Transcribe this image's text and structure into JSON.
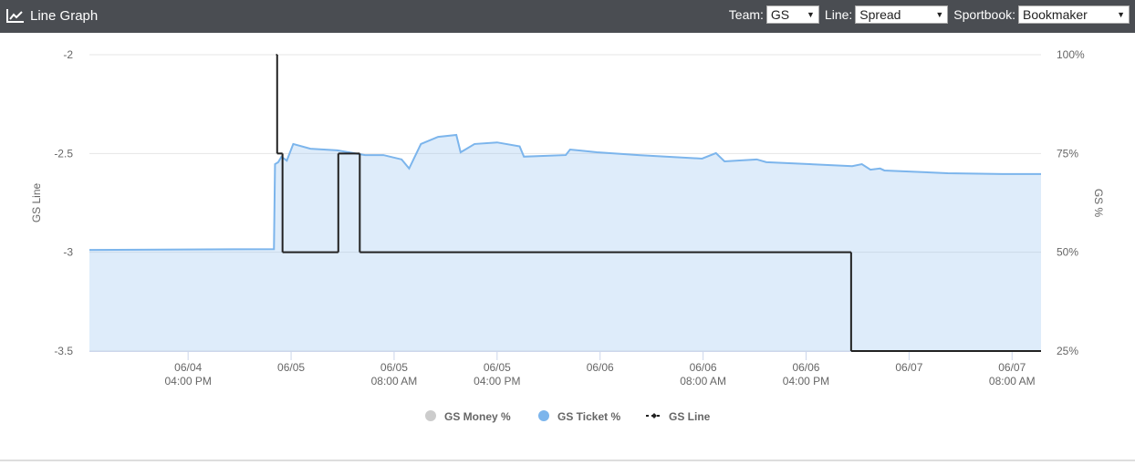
{
  "header": {
    "title": "Line Graph",
    "controls": [
      {
        "label": "Team:",
        "value": "GS"
      },
      {
        "label": "Line:",
        "value": "Spread"
      },
      {
        "label": "Sportbook:",
        "value": "Bookmaker"
      }
    ]
  },
  "chart_data": {
    "type": "line",
    "y_label": "GS Line",
    "y2_label": "GS %",
    "xlim": [
      "06/04 08:20",
      "06/07 10:15"
    ],
    "xticks": [
      {
        "value": "06/04 16:00",
        "label": [
          "06/04",
          "04:00 PM"
        ]
      },
      {
        "value": "06/05 00:00",
        "label": [
          "06/05"
        ]
      },
      {
        "value": "06/05 08:00",
        "label": [
          "06/05",
          "08:00 AM"
        ]
      },
      {
        "value": "06/05 16:00",
        "label": [
          "06/05",
          "04:00 PM"
        ]
      },
      {
        "value": "06/06 00:00",
        "label": [
          "06/06"
        ]
      },
      {
        "value": "06/06 08:00",
        "label": [
          "06/06",
          "08:00 AM"
        ]
      },
      {
        "value": "06/06 16:00",
        "label": [
          "06/06",
          "04:00 PM"
        ]
      },
      {
        "value": "06/07 00:00",
        "label": [
          "06/07"
        ]
      },
      {
        "value": "06/07 08:00",
        "label": [
          "06/07",
          "08:00 AM"
        ]
      }
    ],
    "ylim": [
      -3.5,
      -2
    ],
    "yticks": [
      -2,
      -2.5,
      -3,
      -3.5
    ],
    "y2lim": [
      25,
      100
    ],
    "y2ticks": [
      {
        "value": 100,
        "label": "100%"
      },
      {
        "value": 75,
        "label": "75%"
      },
      {
        "value": 50,
        "label": "50%"
      },
      {
        "value": 25,
        "label": "25%"
      }
    ],
    "grid": true,
    "series": [
      {
        "name": "GS Money %",
        "color": "#cccccc",
        "visible": false
      },
      {
        "name": "GS Ticket %",
        "color": "#7cb5ec",
        "axis": "y2",
        "area": true,
        "x": [
          "06/04 08:20",
          "06/04 22:40",
          "06/04 22:45",
          "06/04 23:00",
          "06/04 23:15",
          "06/04 23:40",
          "06/05 00:10",
          "06/05 01:30",
          "06/05 03:35",
          "06/05 05:45",
          "06/05 07:10",
          "06/05 08:35",
          "06/05 09:10",
          "06/05 10:05",
          "06/05 11:25",
          "06/05 12:50",
          "06/05 13:10",
          "06/05 14:15",
          "06/05 16:00",
          "06/05 17:45",
          "06/05 18:05",
          "06/05 21:20",
          "06/05 21:40",
          "06/05 23:45",
          "06/06 03:00",
          "06/06 07:55",
          "06/06 09:00",
          "06/06 09:40",
          "06/06 12:10",
          "06/06 12:55",
          "06/06 19:35",
          "06/06 20:20",
          "06/06 21:00",
          "06/06 21:45",
          "06/06 22:05",
          "06/07 03:00",
          "06/07 07:15",
          "06/07 10:15"
        ],
        "values": [
          50.6,
          50.8,
          72.3,
          72.8,
          74.2,
          73.2,
          77.4,
          76.2,
          75.8,
          74.6,
          74.6,
          73.5,
          71.2,
          77.4,
          79.2,
          79.7,
          75.3,
          77.4,
          77.8,
          76.8,
          74.2,
          74.6,
          76.0,
          75.3,
          74.6,
          73.7,
          75.1,
          73.0,
          73.5,
          72.8,
          71.8,
          72.3,
          70.9,
          71.2,
          70.7,
          70.0,
          69.8,
          69.8
        ]
      },
      {
        "name": "GS Line",
        "color": "#222222",
        "step": "after",
        "x": [
          "06/04 22:50",
          "06/04 22:55",
          "06/04 23:20",
          "06/05 03:40",
          "06/05 05:20",
          "06/06 19:30"
        ],
        "values": [
          -2,
          -2.5,
          -3,
          -2.5,
          -3,
          -3.5
        ]
      }
    ]
  }
}
